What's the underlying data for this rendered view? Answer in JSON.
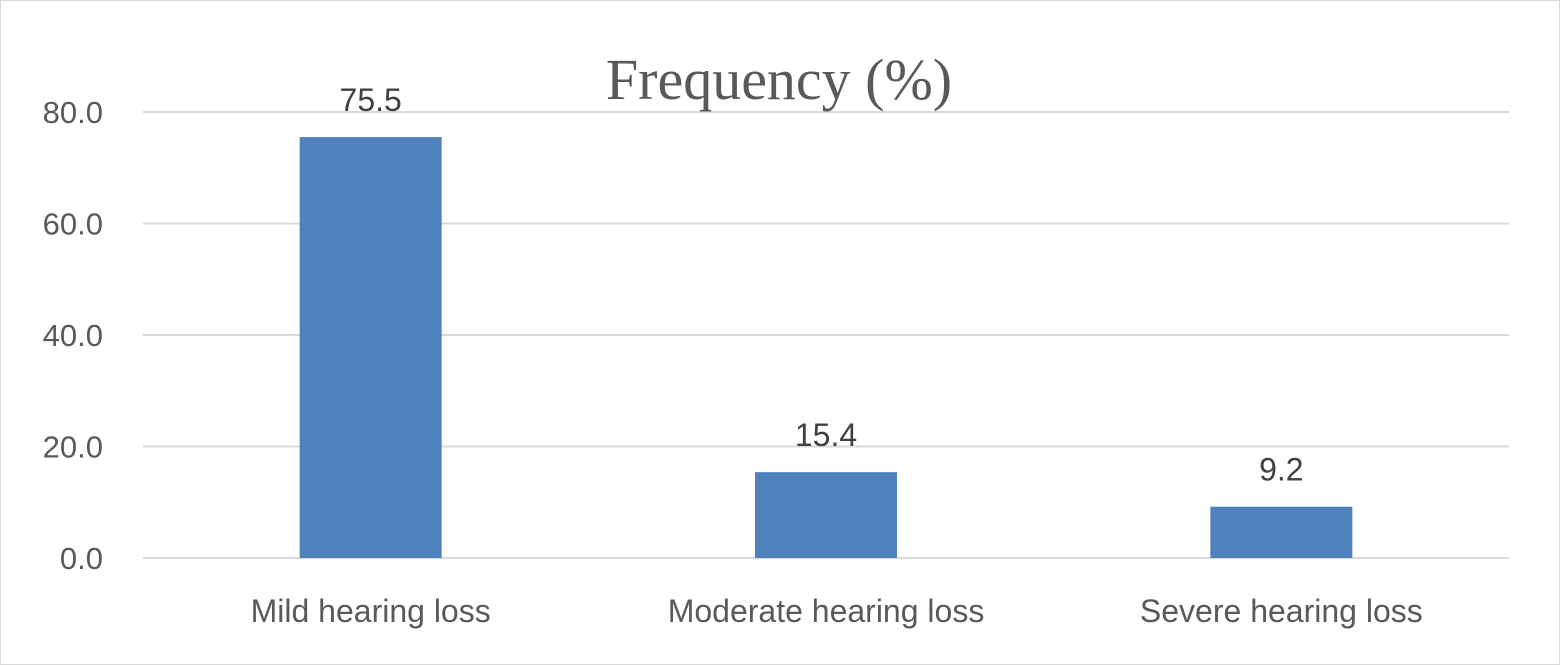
{
  "chart_data": {
    "type": "bar",
    "title": "Frequency (%)",
    "categories": [
      "Mild hearing loss",
      "Moderate hearing loss",
      "Severe hearing loss"
    ],
    "values": [
      75.5,
      15.4,
      9.2
    ],
    "data_labels": [
      "75.5",
      "15.4",
      "9.2"
    ],
    "yticks": [
      "0.0",
      "20.0",
      "40.0",
      "60.0",
      "80.0"
    ],
    "ylim": [
      0,
      80
    ],
    "xlabel": "",
    "ylabel": "",
    "grid": true,
    "legend": "none",
    "colors": {
      "bar": "#4f81bd",
      "grid": "#d9d9d9",
      "text": "#595959",
      "border": "#d9d9d9"
    }
  }
}
